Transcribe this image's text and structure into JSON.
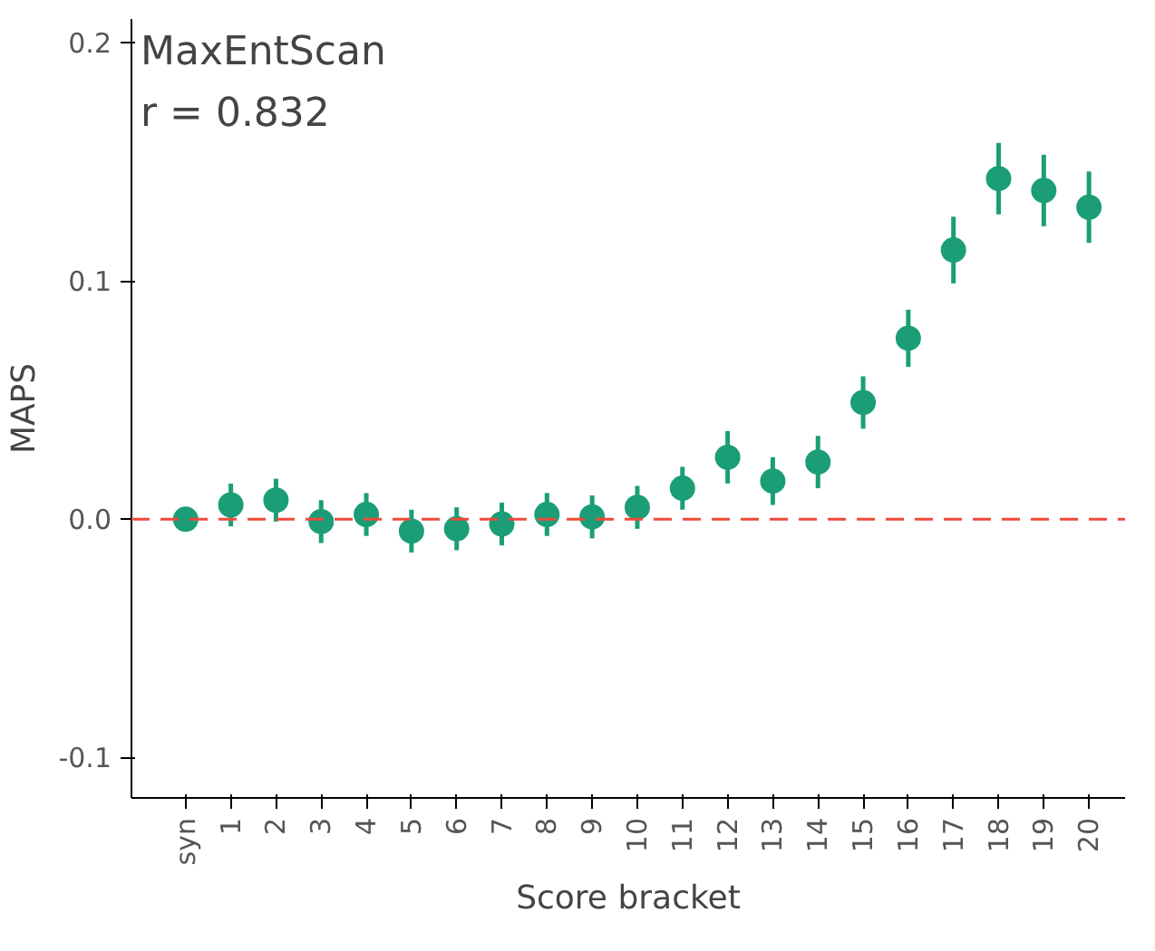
{
  "chart_data": {
    "type": "scatter",
    "xlabel": "Score bracket",
    "ylabel": "MAPS",
    "categories": [
      "syn",
      "1",
      "2",
      "3",
      "4",
      "5",
      "6",
      "7",
      "8",
      "9",
      "10",
      "11",
      "12",
      "13",
      "14",
      "15",
      "16",
      "17",
      "18",
      "19",
      "20"
    ],
    "values": [
      0.0,
      0.006,
      0.008,
      -0.001,
      0.002,
      -0.005,
      -0.004,
      -0.002,
      0.002,
      0.001,
      0.005,
      0.013,
      0.026,
      0.016,
      0.024,
      0.049,
      0.076,
      0.113,
      0.143,
      0.138,
      0.131
    ],
    "errors": [
      0.002,
      0.009,
      0.009,
      0.009,
      0.009,
      0.009,
      0.009,
      0.009,
      0.009,
      0.009,
      0.009,
      0.009,
      0.011,
      0.01,
      0.011,
      0.011,
      0.012,
      0.014,
      0.015,
      0.015,
      0.015
    ],
    "color": "#1b9e77",
    "marker": "circle",
    "ylim": [
      -0.117,
      0.21
    ],
    "yticks": [
      {
        "value": -0.1,
        "label": "-0.1"
      },
      {
        "value": 0,
        "label": "0.0"
      },
      {
        "value": 0.1,
        "label": "0.1"
      },
      {
        "value": 0.2,
        "label": "0.2"
      }
    ],
    "ref_lines": [
      {
        "axis": "y",
        "value": 0,
        "color": "#f0493a",
        "line_style": "dashed"
      }
    ],
    "annotations": [
      "MaxEntScan",
      "r = 0.832"
    ],
    "grid": false
  }
}
